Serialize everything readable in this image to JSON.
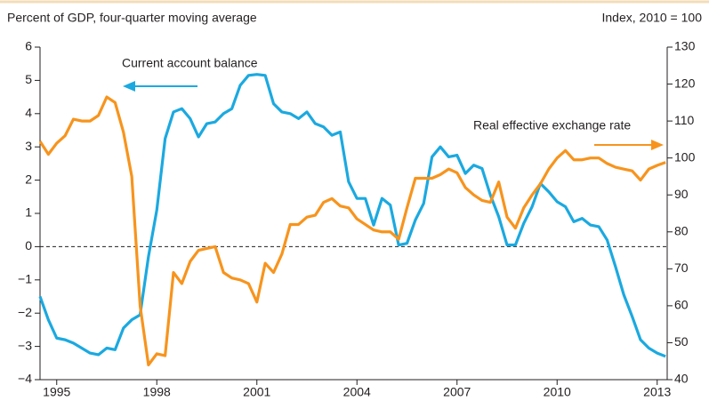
{
  "chart_data": {
    "type": "line",
    "left_axis_label": "Percent of GDP, four-quarter moving average",
    "right_axis_label": "Index, 2010 = 100",
    "annotations": [
      "Current account balance",
      "Real effective exchange rate"
    ],
    "x": [
      1994.5,
      1994.75,
      1995,
      1995.25,
      1995.5,
      1995.75,
      1996,
      1996.25,
      1996.5,
      1996.75,
      1997,
      1997.25,
      1997.5,
      1997.75,
      1998,
      1998.25,
      1998.5,
      1998.75,
      1999,
      1999.25,
      1999.5,
      1999.75,
      2000,
      2000.25,
      2000.5,
      2000.75,
      2001,
      2001.25,
      2001.5,
      2001.75,
      2002,
      2002.25,
      2002.5,
      2002.75,
      2003,
      2003.25,
      2003.5,
      2003.75,
      2004,
      2004.25,
      2004.5,
      2004.75,
      2005,
      2005.25,
      2005.5,
      2005.75,
      2006,
      2006.25,
      2006.5,
      2006.75,
      2007,
      2007.25,
      2007.5,
      2007.75,
      2008,
      2008.25,
      2008.5,
      2008.75,
      2009,
      2009.25,
      2009.5,
      2009.75,
      2010,
      2010.25,
      2010.5,
      2010.75,
      2011,
      2011.25,
      2011.5,
      2011.75,
      2012,
      2012.25,
      2012.5,
      2012.75,
      2013,
      2013.25
    ],
    "series": [
      {
        "name": "Current account balance",
        "color": "#1ba9e0",
        "axis": "y",
        "values": [
          -1.5,
          -2.2,
          -2.75,
          -2.8,
          -2.9,
          -3.05,
          -3.2,
          -3.25,
          -3.05,
          -3.1,
          -2.45,
          -2.2,
          -2.05,
          -0.3,
          1.1,
          3.25,
          4.05,
          4.15,
          3.85,
          3.3,
          3.7,
          3.75,
          4.0,
          4.15,
          4.85,
          5.15,
          5.18,
          5.15,
          4.3,
          4.05,
          4.0,
          3.85,
          4.05,
          3.7,
          3.6,
          3.35,
          3.45,
          1.95,
          1.45,
          1.45,
          0.65,
          1.45,
          1.25,
          0.05,
          0.1,
          0.8,
          1.3,
          2.7,
          3.0,
          2.7,
          2.75,
          2.2,
          2.45,
          2.35,
          1.55,
          0.9,
          0.05,
          0.05,
          0.7,
          1.2,
          1.9,
          1.65,
          1.35,
          1.2,
          0.75,
          0.85,
          0.65,
          0.6,
          0.2,
          -0.6,
          -1.45,
          -2.1,
          -2.8,
          -3.05,
          -3.2,
          -3.3
        ]
      },
      {
        "name": "Real effective exchange rate",
        "color": "#f7941d",
        "axis": "y2",
        "values": [
          104.5,
          101,
          104,
          106,
          110.5,
          110,
          110,
          111.5,
          116.5,
          115,
          107,
          95,
          60,
          44,
          47,
          46.5,
          69,
          66,
          72,
          75,
          75.5,
          76,
          69,
          67.5,
          67,
          66,
          61,
          71.5,
          69,
          74,
          82,
          82,
          84,
          84.5,
          88,
          89,
          87,
          86.5,
          83.5,
          82,
          80.5,
          80,
          80,
          78,
          86.5,
          94.5,
          94.5,
          94.5,
          95.5,
          97,
          96,
          92,
          90,
          88.5,
          88,
          93.5,
          84,
          81,
          86.5,
          90,
          93,
          97,
          100,
          102,
          99.5,
          99.5,
          100,
          100,
          98.5,
          97.5,
          97,
          96.5,
          94,
          97,
          98,
          98.8
        ]
      }
    ],
    "xlim": [
      1994.5,
      2013.3
    ],
    "xticks": [
      1995,
      1998,
      2001,
      2004,
      2007,
      2010,
      2013
    ],
    "ylim": [
      -4,
      6
    ],
    "yticks": [
      {
        "value": -4,
        "label": "−4"
      },
      {
        "value": -3,
        "label": "−3"
      },
      {
        "value": -2,
        "label": "−2"
      },
      {
        "value": -1,
        "label": "−1"
      },
      0,
      1,
      2,
      3,
      4,
      5,
      6
    ],
    "y2lim": [
      40,
      130
    ],
    "y2ticks": [
      40,
      50,
      60,
      70,
      80,
      90,
      100,
      110,
      120,
      130
    ],
    "zero_line": true
  }
}
